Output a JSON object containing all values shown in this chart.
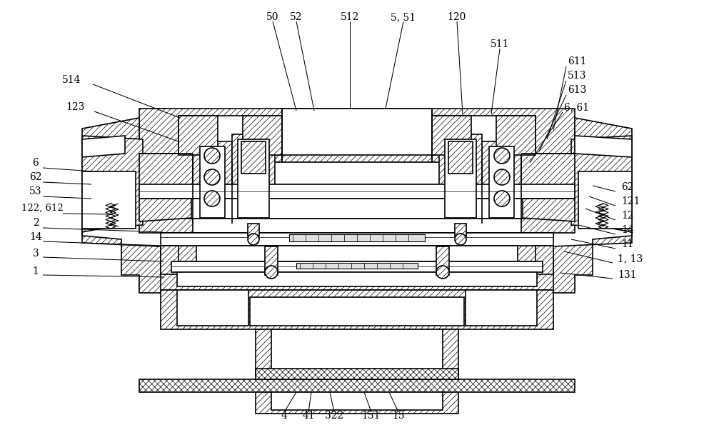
{
  "bg_color": "#ffffff",
  "lw": 1.2,
  "lw_thin": 0.7
}
